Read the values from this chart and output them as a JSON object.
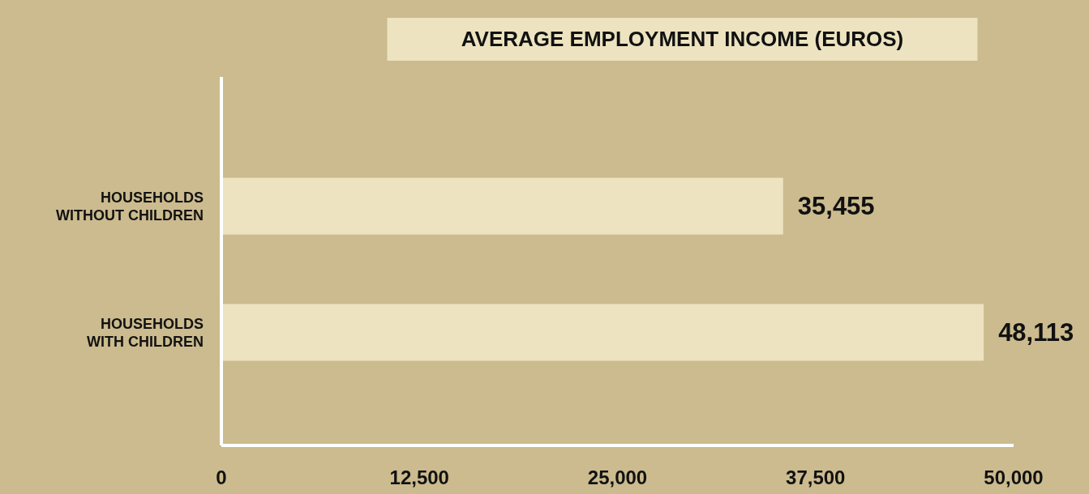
{
  "chart_data": {
    "type": "bar",
    "title": "AVERAGE EMPLOYMENT INCOME (EUROS)",
    "orientation": "horizontal",
    "categories": [
      "HOUSEHOLDS WITHOUT CHILDREN",
      "HOUSEHOLDS WITH CHILDREN"
    ],
    "values": [
      35455,
      48113
    ],
    "value_labels": [
      "35,455",
      "48,113"
    ],
    "color": "#ede3c0",
    "xlim": [
      0,
      50000
    ],
    "xticks": [
      {
        "value": 0,
        "label": "0"
      },
      {
        "value": 12500,
        "label": "12,500"
      },
      {
        "value": 25000,
        "label": "25,000"
      },
      {
        "value": 37500,
        "label": "37,500"
      },
      {
        "value": 50000,
        "label": "50,000"
      }
    ],
    "grid": false
  }
}
